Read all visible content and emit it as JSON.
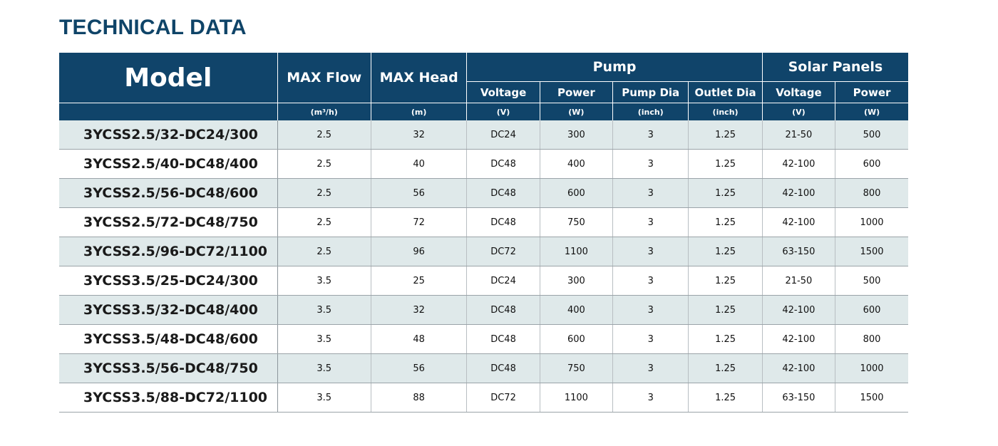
{
  "title": "TECHNICAL DATA",
  "header": {
    "model": "Model",
    "max_flow": "MAX Flow",
    "max_head": "MAX Head",
    "pump": "Pump",
    "solar_panels": "Solar Panels",
    "pump_voltage": "Voltage",
    "pump_power": "Power",
    "pump_dia": "Pump Dia",
    "outlet_dia": "Outlet Dia",
    "solar_voltage": "Voltage",
    "solar_power": "Power",
    "units": {
      "max_flow": "(m³/h)",
      "max_head": "(m)",
      "pump_voltage": "(V)",
      "pump_power": "(W)",
      "pump_dia": "(inch)",
      "outlet_dia": "(inch)",
      "solar_voltage": "(V)",
      "solar_power": "(W)"
    }
  },
  "rows": [
    [
      "3YCSS2.5/32-DC24/300",
      "2.5",
      "32",
      "DC24",
      "300",
      "3",
      "1.25",
      "21-50",
      "500"
    ],
    [
      "3YCSS2.5/40-DC48/400",
      "2.5",
      "40",
      "DC48",
      "400",
      "3",
      "1.25",
      "42-100",
      "600"
    ],
    [
      "3YCSS2.5/56-DC48/600",
      "2.5",
      "56",
      "DC48",
      "600",
      "3",
      "1.25",
      "42-100",
      "800"
    ],
    [
      "3YCSS2.5/72-DC48/750",
      "2.5",
      "72",
      "DC48",
      "750",
      "3",
      "1.25",
      "42-100",
      "1000"
    ],
    [
      "3YCSS2.5/96-DC72/1100",
      "2.5",
      "96",
      "DC72",
      "1100",
      "3",
      "1.25",
      "63-150",
      "1500"
    ],
    [
      "3YCSS3.5/25-DC24/300",
      "3.5",
      "25",
      "DC24",
      "300",
      "3",
      "1.25",
      "21-50",
      "500"
    ],
    [
      "3YCSS3.5/32-DC48/400",
      "3.5",
      "32",
      "DC48",
      "400",
      "3",
      "1.25",
      "42-100",
      "600"
    ],
    [
      "3YCSS3.5/48-DC48/600",
      "3.5",
      "48",
      "DC48",
      "600",
      "3",
      "1.25",
      "42-100",
      "800"
    ],
    [
      "3YCSS3.5/56-DC48/750",
      "3.5",
      "56",
      "DC48",
      "750",
      "3",
      "1.25",
      "42-100",
      "1000"
    ],
    [
      "3YCSS3.5/88-DC72/1100",
      "3.5",
      "88",
      "DC72",
      "1100",
      "3",
      "1.25",
      "63-150",
      "1500"
    ]
  ],
  "colors": {
    "header_bg": "#10446a",
    "title_text": "#0f4468",
    "row_shade": "#dfe9ea"
  }
}
